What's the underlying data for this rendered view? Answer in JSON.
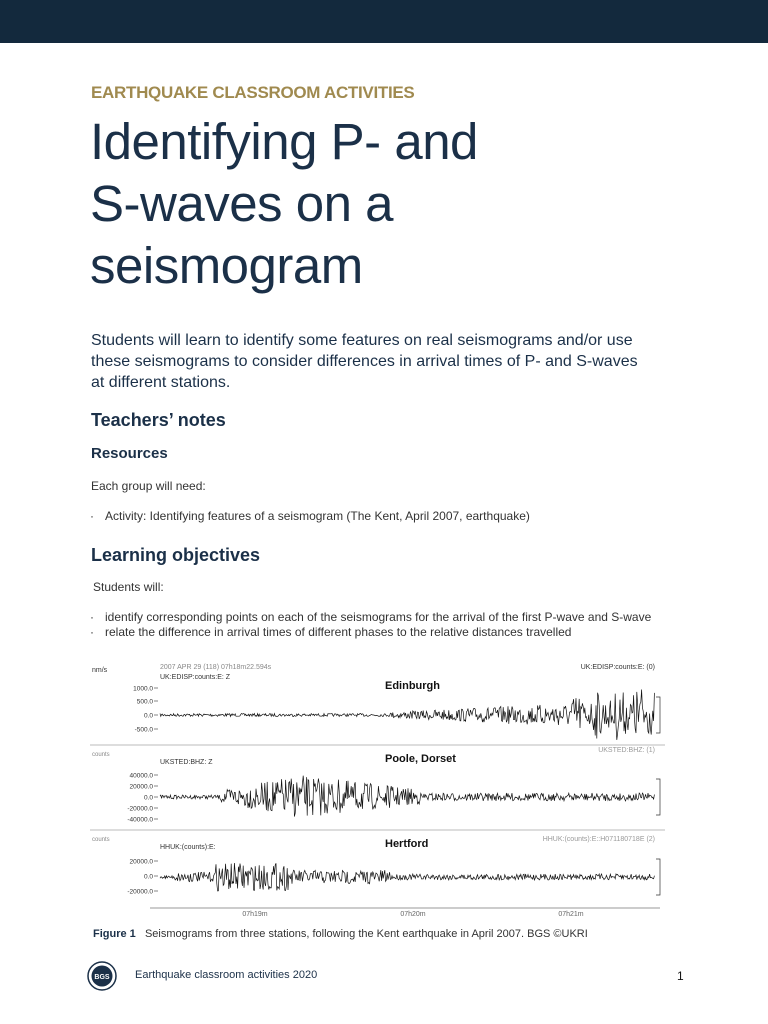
{
  "header": {
    "label": "EARTHQUAKE CLASSROOM ACTIVITIES",
    "title_lines": [
      "Identifying P- and",
      "S-waves on a",
      "seismogram"
    ]
  },
  "intro_lines": [
    "Students will learn to identify some features on real seismograms and/or use",
    "these seismograms to consider differences in arrival times of P- and S-waves",
    "at different stations."
  ],
  "teachers_notes": {
    "heading": "Teachers’ notes",
    "resources": {
      "heading": "Resources",
      "lead": "Each group will need:",
      "bullets": [
        "Activity: Identifying features of a seismogram (The Kent, April 2007, earthquake)"
      ]
    }
  },
  "learning_objectives": {
    "heading": "Learning objectives",
    "lead": "Students will:",
    "bullets": [
      "identify corresponding points on each of the seismograms for the arrival of the first P-wave and S-wave",
      "relate the difference in arrival times of different phases to the relative distances travelled"
    ]
  },
  "figure": {
    "top": {
      "unit": "nm/s",
      "timestamp": "2007 APR 29 (118) 07h18m22.594s",
      "right": "UK:EDISP:counts:E: (0)"
    },
    "panels": [
      {
        "channel": "UK:EDISP:counts:E: Z",
        "station": "Edinburgh",
        "ticks": [
          "1000.0",
          "500.0",
          "0.0",
          "-500.0"
        ]
      },
      {
        "unit": "counts",
        "channel": "UKSTED:BHZ: Z",
        "station": "Poole, Dorset",
        "right": "UKSTED:BHZ: (1)",
        "ticks": [
          "40000.0",
          "20000.0",
          "0.0",
          "-20000.0",
          "-40000.0"
        ]
      },
      {
        "unit": "counts",
        "channel": "HHUK:(counts):E:",
        "station": "Hertford",
        "right": "HHUK:(counts):E::H071180718E (2)",
        "ticks": [
          "20000.0",
          "0.0",
          "-20000.0"
        ]
      }
    ],
    "time_labels": [
      "07h19m",
      "07h20m",
      "07h21m"
    ],
    "caption_label": "Figure 1",
    "caption": "Seismograms from three stations, following the Kent earthquake in April 2007. BGS ©UKRI"
  },
  "footer": {
    "logo": "BGS",
    "text": "Earthquake classroom activities 2020",
    "page": "1"
  }
}
